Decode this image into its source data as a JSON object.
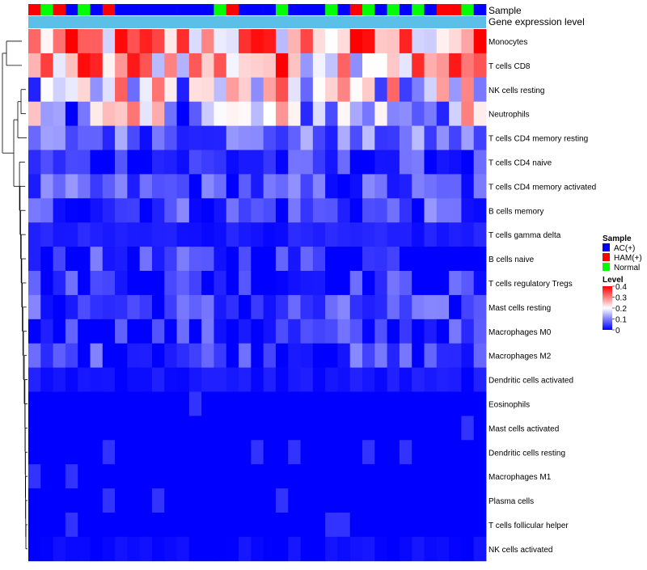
{
  "chart_data": {
    "type": "heatmap",
    "annotation_rows": [
      "Sample",
      "Gene expression level"
    ],
    "legend": {
      "sample_title": "Sample",
      "groups": [
        {
          "label": "AC(+)",
          "color": "#0000ff"
        },
        {
          "label": "HAM(+)",
          "color": "#ff0000"
        },
        {
          "label": "Normal",
          "color": "#00ff00"
        }
      ],
      "level_title": "Level",
      "level_ticks": [
        "0.4",
        "0.3",
        "0.2",
        "0.1",
        "0"
      ],
      "level_range": [
        0,
        0.4
      ],
      "colors": {
        "low": "#0000ff",
        "mid": "#ffffff",
        "high": "#ff0000"
      }
    },
    "expression_bar_color": "#5bbfe8",
    "sample_groups": [
      "HAM(+)",
      "Normal",
      "HAM(+)",
      "AC(+)",
      "Normal",
      "AC(+)",
      "HAM(+)",
      "AC(+)",
      "AC(+)",
      "AC(+)",
      "AC(+)",
      "AC(+)",
      "AC(+)",
      "AC(+)",
      "AC(+)",
      "Normal",
      "HAM(+)",
      "AC(+)",
      "AC(+)",
      "AC(+)",
      "Normal",
      "AC(+)",
      "AC(+)",
      "AC(+)",
      "Normal",
      "AC(+)",
      "HAM(+)",
      "Normal",
      "AC(+)",
      "Normal",
      "AC(+)",
      "Normal",
      "AC(+)",
      "HAM(+)",
      "HAM(+)",
      "Normal",
      "AC(+)"
    ],
    "rows": [
      "Monocytes",
      "T cells CD8",
      "NK cells resting",
      "Neutrophils",
      "T cells CD4 memory resting",
      "T cells CD4 naive",
      "T cells CD4 memory activated",
      "B cells memory",
      "T cells gamma delta",
      "B cells naive",
      "T cells regulatory  Tregs",
      "Mast cells resting",
      "Macrophages M0",
      "Macrophages M2",
      "Dendritic cells activated",
      "Eosinophils",
      "Mast cells activated",
      "Dendritic cells resting",
      "Macrophages M1",
      "Plasma cells",
      "T cells follicular helper",
      "NK cells activated"
    ],
    "row_levels": [
      0.27,
      0.27,
      0.18,
      0.15,
      0.08,
      0.03,
      0.05,
      0.05,
      0.02,
      0.03,
      0.03,
      0.04,
      0.03,
      0.04,
      0.015,
      0.0,
      0.0,
      0.0,
      0.0,
      0.0,
      0.0,
      0.005
    ],
    "title": "",
    "xlabel": "",
    "ylabel": ""
  }
}
